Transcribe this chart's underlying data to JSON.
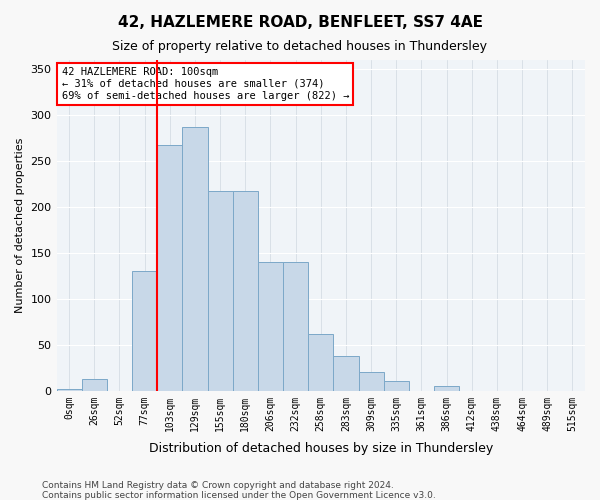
{
  "title1": "42, HAZLEMERE ROAD, BENFLEET, SS7 4AE",
  "title2": "Size of property relative to detached houses in Thundersley",
  "xlabel": "Distribution of detached houses by size in Thundersley",
  "ylabel": "Number of detached properties",
  "bar_color": "#c8d8e8",
  "bar_edge_color": "#7ca8c8",
  "background_color": "#f0f4f8",
  "grid_color": "#ffffff",
  "categories": [
    "0sqm",
    "26sqm",
    "52sqm",
    "77sqm",
    "103sqm",
    "129sqm",
    "155sqm",
    "180sqm",
    "206sqm",
    "232sqm",
    "258sqm",
    "283sqm",
    "309sqm",
    "335sqm",
    "361sqm",
    "386sqm",
    "412sqm",
    "438sqm",
    "464sqm",
    "489sqm",
    "515sqm"
  ],
  "values": [
    2,
    13,
    0,
    130,
    268,
    287,
    217,
    217,
    140,
    140,
    62,
    38,
    20,
    11,
    0,
    5,
    0,
    0,
    0,
    0,
    0
  ],
  "ylim": [
    0,
    360
  ],
  "yticks": [
    0,
    50,
    100,
    150,
    200,
    250,
    300,
    350
  ],
  "property_line_x": 4,
  "annotation_text": "42 HAZLEMERE ROAD: 100sqm\n← 31% of detached houses are smaller (374)\n69% of semi-detached houses are larger (822) →",
  "annotation_box_color": "white",
  "annotation_box_edge_color": "red",
  "property_line_color": "red",
  "footnote1": "Contains HM Land Registry data © Crown copyright and database right 2024.",
  "footnote2": "Contains public sector information licensed under the Open Government Licence v3.0."
}
